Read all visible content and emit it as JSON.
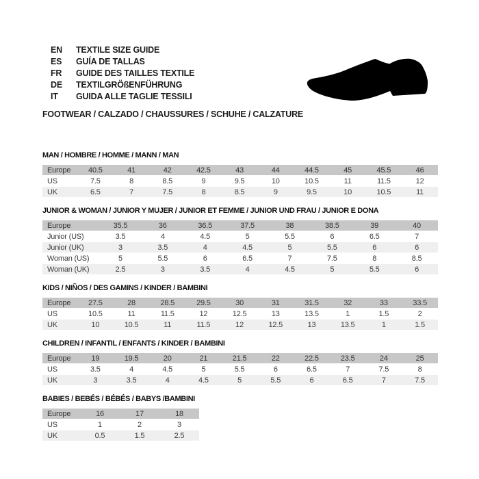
{
  "page": {
    "background_color": "#ffffff"
  },
  "colors": {
    "header_row_bg": "#c7c7c7",
    "alt_row_bg": "#efefef",
    "title_text": "#111111",
    "table_text": "#3b3b3b",
    "shoe": "#000000"
  },
  "header": {
    "languages": [
      {
        "code": "EN",
        "text": "TEXTILE SIZE GUIDE"
      },
      {
        "code": "ES",
        "text": "GUÍA DE TALLAS"
      },
      {
        "code": "FR",
        "text": "GUIDE DES TAILLES TEXTILE"
      },
      {
        "code": "DE",
        "text": "TEXTILGRÖßENFÜHRUNG"
      },
      {
        "code": "IT",
        "text": "GUIDA ALLE TAGLIE TESSILI"
      }
    ],
    "category_line": "FOOTWEAR / CALZADO / CHAUSSURES / SCHUHE / CALZATURE",
    "icons": {
      "shoe": "dress-shoe-silhouette"
    }
  },
  "tables": [
    {
      "title": "MAN / HOMBRE / HOMME / MANN / MAN",
      "rows": [
        {
          "label": "Europe",
          "values": [
            "40.5",
            "41",
            "42",
            "42.5",
            "43",
            "44",
            "44.5",
            "45",
            "45.5",
            "46"
          ]
        },
        {
          "label": "US",
          "values": [
            "7.5",
            "8",
            "8.5",
            "9",
            "9.5",
            "10",
            "10.5",
            "11",
            "11.5",
            "12"
          ]
        },
        {
          "label": "UK",
          "values": [
            "6.5",
            "7",
            "7.5",
            "8",
            "8.5",
            "9",
            "9.5",
            "10",
            "10.5",
            "11"
          ]
        }
      ]
    },
    {
      "title": "JUNIOR & WOMAN / JUNIOR Y MUJER / JUNIOR ET FEMME / JUNIOR UND FRAU / JUNIOR E DONA",
      "rows": [
        {
          "label": "Europe",
          "values": [
            "35.5",
            "36",
            "36.5",
            "37.5",
            "38",
            "38.5",
            "39",
            "40"
          ]
        },
        {
          "label": "Junior (US)",
          "values": [
            "3.5",
            "4",
            "4.5",
            "5",
            "5.5",
            "6",
            "6.5",
            "7"
          ]
        },
        {
          "label": "Junior (UK)",
          "values": [
            "3",
            "3.5",
            "4",
            "4.5",
            "5",
            "5.5",
            "6",
            "6"
          ]
        },
        {
          "label": "Woman (US)",
          "values": [
            "5",
            "5.5",
            "6",
            "6.5",
            "7",
            "7.5",
            "8",
            "8.5"
          ]
        },
        {
          "label": "Woman (UK)",
          "values": [
            "2.5",
            "3",
            "3.5",
            "4",
            "4.5",
            "5",
            "5.5",
            "6"
          ]
        }
      ]
    },
    {
      "title": "KIDS / NIÑOS / DES GAMINS / KINDER / BAMBINI",
      "rows": [
        {
          "label": "Europe",
          "values": [
            "27.5",
            "28",
            "28.5",
            "29.5",
            "30",
            "31",
            "31.5",
            "32",
            "33",
            "33.5"
          ]
        },
        {
          "label": "US",
          "values": [
            "10.5",
            "11",
            "11.5",
            "12",
            "12.5",
            "13",
            "13.5",
            "1",
            "1.5",
            "2"
          ]
        },
        {
          "label": "UK",
          "values": [
            "10",
            "10.5",
            "11",
            "11.5",
            "12",
            "12.5",
            "13",
            "13.5",
            "1",
            "1.5"
          ]
        }
      ]
    },
    {
      "title": "CHILDREN / INFANTIL / ENFANTS / KINDER / BAMBINI",
      "rows": [
        {
          "label": "Europe",
          "values": [
            "19",
            "19.5",
            "20",
            "21",
            "21.5",
            "22",
            "22.5",
            "23.5",
            "24",
            "25"
          ]
        },
        {
          "label": "US",
          "values": [
            "3.5",
            "4",
            "4.5",
            "5",
            "5.5",
            "6",
            "6.5",
            "7",
            "7.5",
            "8"
          ]
        },
        {
          "label": "UK",
          "values": [
            "3",
            "3.5",
            "4",
            "4.5",
            "5",
            "5.5",
            "6",
            "6.5",
            "7",
            "7.5"
          ]
        }
      ]
    },
    {
      "title": "BABIES / BEBÉS / BÉBÉS / BABYS /BAMBINI",
      "rows": [
        {
          "label": "Europe",
          "values": [
            "16",
            "17",
            "18"
          ]
        },
        {
          "label": "US",
          "values": [
            "1",
            "2",
            "3"
          ]
        },
        {
          "label": "UK",
          "values": [
            "0.5",
            "1.5",
            "2.5"
          ]
        }
      ]
    }
  ]
}
